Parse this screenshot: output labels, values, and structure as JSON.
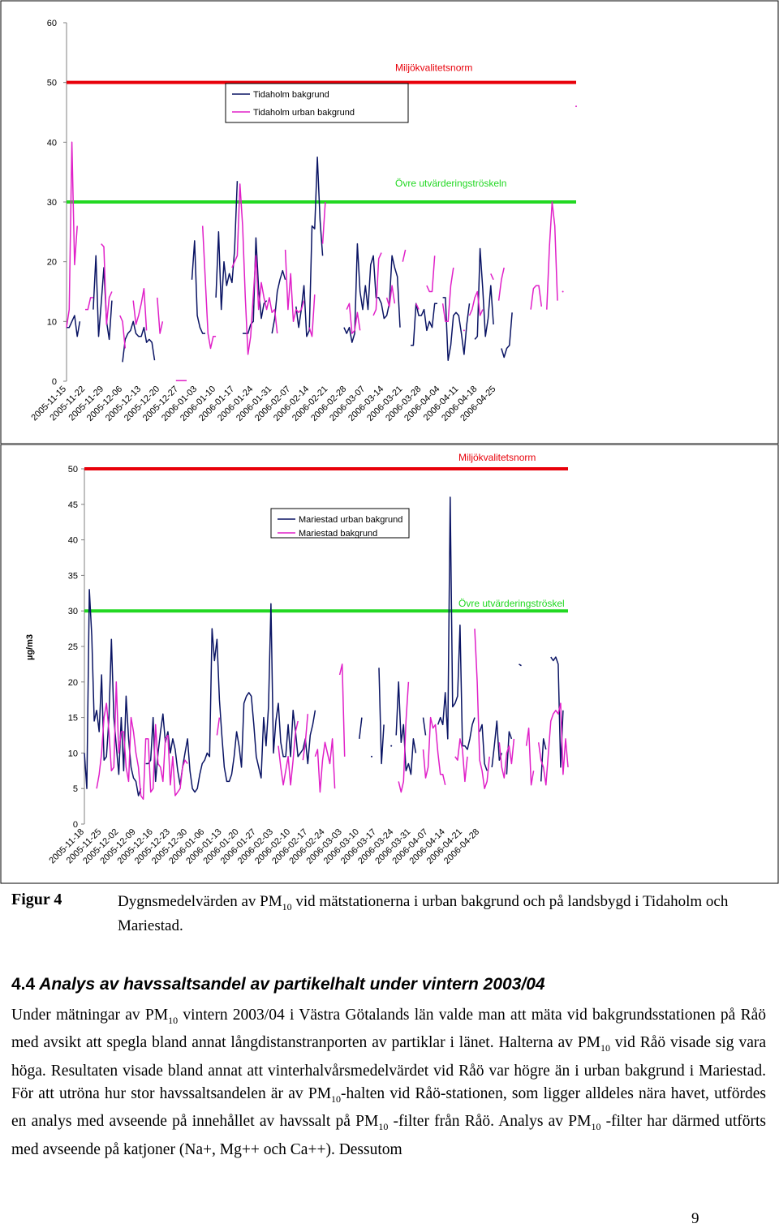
{
  "chart_data": [
    {
      "type": "line",
      "ylabel": "",
      "ylim": [
        0,
        60
      ],
      "yticks": [
        0,
        10,
        20,
        30,
        40,
        50,
        60
      ],
      "x_tick_labels": [
        "2005-11-15",
        "2005-11-22",
        "2005-11-29",
        "2005-12-06",
        "2005-12-13",
        "2005-12-20",
        "2005-12-27",
        "2006-01-03",
        "2006-01-10",
        "2006-01-17",
        "2006-01-24",
        "2006-01-31",
        "2006-02-07",
        "2006-02-14",
        "2006-02-21",
        "2006-02-28",
        "2006-03-07",
        "2006-03-14",
        "2006-03-21",
        "2006-03-28",
        "2006-04-04",
        "2006-04-11",
        "2006-04-18",
        "2006-04-25"
      ],
      "x_start": "2005-11-15",
      "thresholds": [
        {
          "label": "Miljökvalitetsnorm",
          "value": 50,
          "color": "#e8000a"
        },
        {
          "label": "Övre utvärderingströskeln",
          "value": 30,
          "color": "#22d822"
        }
      ],
      "series": [
        {
          "name": "Tidaholm bakgrund",
          "color": "#0a1464",
          "values": [
            9,
            9,
            10,
            11,
            7.5,
            10,
            null,
            null,
            null,
            null,
            12,
            21,
            7.5,
            13,
            19,
            10,
            7,
            13.5,
            null,
            null,
            null,
            3.2,
            7,
            8,
            8.5,
            10,
            8,
            7.5,
            7.5,
            9,
            6.5,
            7,
            6.5,
            3.5,
            null,
            null,
            null,
            null,
            null,
            null,
            null,
            null,
            null,
            null,
            null,
            null,
            null,
            17,
            23.5,
            11,
            9,
            8,
            8,
            null,
            null,
            null,
            14,
            25,
            12,
            20,
            16,
            18,
            16.5,
            22,
            33.5,
            null,
            8,
            8,
            8,
            9.5,
            10,
            24,
            15.5,
            10.5,
            13,
            13.5,
            null,
            8,
            10.5,
            15,
            17,
            18.5,
            17,
            null,
            null,
            null,
            12.5,
            9,
            12,
            16,
            7.5,
            8.5,
            26,
            25.5,
            37.5,
            27,
            21,
            null,
            null,
            null,
            null,
            null,
            null,
            null,
            9,
            8,
            9,
            6.5,
            8,
            23,
            15,
            12,
            16,
            12,
            19.5,
            21,
            14,
            14,
            13,
            10.5,
            11,
            13,
            21,
            19,
            17.5,
            9,
            null,
            null,
            null,
            6,
            6,
            13,
            11,
            11,
            12,
            8.5,
            10,
            9,
            13,
            13,
            null,
            14,
            14,
            3.5,
            6,
            11,
            11.5,
            11,
            8,
            4.5,
            9.5,
            13,
            null,
            7,
            7.5,
            22.2,
            15.5,
            7.5,
            10.5,
            16,
            9.5,
            null,
            null,
            5.5,
            4,
            5.5,
            6,
            11.5
          ]
        },
        {
          "name": "Tidaholm urban bakgrund",
          "color": "#e020c8",
          "values": [
            9,
            12,
            40,
            19.5,
            26,
            null,
            null,
            12,
            12,
            14,
            14,
            null,
            null,
            23,
            22.5,
            9.5,
            14,
            15,
            null,
            null,
            11,
            10,
            5.5,
            null,
            null,
            13.5,
            9.5,
            11,
            13,
            15.5,
            8.5,
            null,
            null,
            null,
            14,
            8,
            10,
            null,
            null,
            null,
            null,
            0.1,
            0.1,
            0.1,
            0.1,
            0.1,
            null,
            null,
            null,
            null,
            null,
            26,
            17,
            8,
            5.5,
            7.5,
            7.5,
            null,
            null,
            null,
            null,
            null,
            19,
            20,
            21,
            33,
            26,
            14,
            4.5,
            7.5,
            14.5,
            21,
            12,
            16.5,
            14,
            12,
            14,
            11.5,
            12,
            8,
            null,
            null,
            22,
            12,
            18,
            10,
            12,
            11.5,
            12,
            13.5,
            null,
            9,
            7.5,
            14.5,
            null,
            null,
            23,
            30,
            null,
            null,
            null,
            null,
            null,
            null,
            null,
            12,
            13,
            8,
            8.5,
            11.5,
            8.5,
            null,
            null,
            null,
            null,
            11,
            12,
            20.5,
            21.5,
            null,
            14,
            12.5,
            16,
            13,
            null,
            null,
            20,
            22,
            null,
            null,
            null,
            13,
            12,
            null,
            null,
            16,
            15,
            15,
            21,
            null,
            null,
            13,
            10,
            10,
            16,
            19,
            null,
            null,
            null,
            8.5,
            null,
            11,
            12,
            14,
            15,
            11,
            12,
            null,
            null,
            18,
            17,
            null,
            13.5,
            17,
            19,
            null,
            null,
            null,
            null,
            null,
            null,
            null,
            null,
            null,
            12,
            15.5,
            16,
            16,
            12.5,
            null,
            12,
            22.5,
            30,
            26,
            13.5,
            null,
            15,
            null,
            null,
            null,
            null,
            46
          ]
        }
      ]
    },
    {
      "type": "line",
      "ylabel": "µg/m3",
      "ylim": [
        0,
        50
      ],
      "yticks": [
        0,
        5,
        10,
        15,
        20,
        25,
        30,
        35,
        40,
        45,
        50
      ],
      "x_tick_labels": [
        "2005-11-18",
        "2005-11-25",
        "2005-12-02",
        "2005-12-09",
        "2005-12-16",
        "2005-12-23",
        "2005-12-30",
        "2006-01-06",
        "2006-01-13",
        "2006-01-20",
        "2006-01-27",
        "2006-02-03",
        "2006-02-10",
        "2006-02-17",
        "2006-02-24",
        "2006-03-03",
        "2006-03-10",
        "2006-03-17",
        "2006-03-24",
        "2006-03-31",
        "2006-04-07",
        "2006-04-14",
        "2006-04-21",
        "2006-04-28"
      ],
      "x_start": "2005-11-18",
      "thresholds": [
        {
          "label": "Miljökvalitetsnorm",
          "value": 50,
          "color": "#e8000a"
        },
        {
          "label": "Övre utvärderingströskel",
          "value": 30,
          "color": "#22d822"
        }
      ],
      "series": [
        {
          "name": "Mariestad urban bakgrund",
          "color": "#0a1464",
          "values": [
            10,
            5,
            33,
            26.5,
            14.5,
            16,
            13,
            21,
            9,
            9.5,
            15,
            26,
            15,
            11,
            7,
            15,
            7.5,
            18,
            12,
            8,
            6.5,
            6,
            4,
            5,
            null,
            8.5,
            8.5,
            9,
            15,
            6,
            10,
            13,
            15.5,
            11.5,
            13,
            10,
            12,
            10.5,
            7.5,
            5.5,
            8,
            10,
            12,
            7.5,
            5,
            4.5,
            5,
            7,
            8.5,
            9,
            10,
            9.5,
            27.5,
            23,
            26,
            17.5,
            12.5,
            8,
            6,
            6,
            7,
            9.5,
            13,
            11,
            8,
            17,
            18,
            18.5,
            18,
            14,
            9.5,
            8,
            6.5,
            15,
            11,
            16.5,
            31,
            10,
            14.5,
            17,
            11.5,
            9.5,
            9.5,
            14,
            9.5,
            16,
            13,
            9.5,
            10,
            10.5,
            12,
            8.5,
            12.5,
            14,
            16,
            null,
            null,
            null,
            null,
            null,
            null,
            null,
            null,
            null,
            null,
            null,
            null,
            null,
            null,
            null,
            null,
            null,
            12,
            15,
            null,
            null,
            null,
            9.5,
            null,
            null,
            22,
            8.5,
            14,
            null,
            null,
            11,
            null,
            12.5,
            20,
            11.5,
            14,
            7.5,
            8.5,
            7,
            12,
            10,
            null,
            null,
            15,
            12.5,
            null,
            null,
            null,
            null,
            14,
            15,
            14,
            18.5,
            12,
            46,
            16.5,
            17,
            18,
            28,
            11,
            11,
            10.5,
            12,
            14,
            15,
            null,
            13,
            14,
            8.5,
            7.5,
            null,
            8,
            11,
            14.5,
            9,
            10,
            null,
            7,
            13,
            12,
            null,
            null,
            22.5,
            22.3,
            null,
            null,
            null,
            null,
            null,
            null,
            null,
            6,
            12,
            10.5,
            null,
            23.5,
            23,
            23.5,
            22.5,
            8,
            16
          ]
        },
        {
          "name": "Mariestad bakgrund",
          "color": "#e020c8",
          "values": [
            null,
            null,
            null,
            null,
            null,
            5,
            7,
            10,
            15,
            17,
            13,
            7.5,
            8,
            20,
            10,
            13,
            13,
            8,
            6,
            15,
            13,
            10,
            8,
            4,
            3.5,
            12,
            12,
            4.5,
            5,
            14,
            8.5,
            8,
            6,
            12,
            12.5,
            5.5,
            9.5,
            4,
            4.5,
            5,
            8,
            9,
            8.5,
            null,
            null,
            null,
            null,
            null,
            null,
            null,
            null,
            null,
            null,
            null,
            12.5,
            15,
            null,
            null,
            null,
            null,
            null,
            null,
            null,
            null,
            null,
            null,
            null,
            null,
            null,
            null,
            null,
            null,
            null,
            null,
            null,
            null,
            null,
            null,
            null,
            11,
            8,
            5.5,
            7.5,
            9.5,
            5.5,
            9,
            13,
            14.5,
            null,
            9,
            11.5,
            15.5,
            null,
            null,
            9.5,
            10.5,
            4.5,
            9,
            11.5,
            10,
            8.5,
            12,
            5,
            null,
            21,
            22.5,
            9.5,
            null,
            null,
            null,
            null,
            null,
            null,
            null,
            null,
            null,
            null,
            null,
            null,
            null,
            null,
            null,
            null,
            null,
            null,
            null,
            null,
            null,
            6,
            4.5,
            6,
            14.5,
            20,
            null,
            null,
            null,
            null,
            null,
            10.5,
            6.5,
            8,
            15,
            13.5,
            14,
            10,
            7,
            7,
            5.5,
            null,
            null,
            null,
            9.5,
            9,
            12,
            10.5,
            6,
            9.5,
            null,
            null,
            27.5,
            20,
            9,
            7.5,
            5,
            6,
            9.5,
            null,
            null,
            null,
            11.5,
            8,
            6.5,
            10,
            11,
            8.5,
            12,
            null,
            null,
            null,
            null,
            11,
            13.5,
            5.5,
            7.5,
            null,
            11.5,
            9,
            8,
            5.5,
            10,
            14.5,
            15.5,
            16,
            15.5,
            17,
            7,
            12,
            8
          ]
        }
      ]
    }
  ],
  "figure": {
    "label": "Figur 4",
    "caption_before": "Dygnsmedelvärden av PM",
    "caption_sub": "10",
    "caption_after": " vid mätstationerna i  urban bakgrund och på landsbygd i Tidaholm och Mariestad."
  },
  "section": {
    "number": "4.4",
    "title": "Analys av havssaltsandel av partikelhalt under vintern 2003/04",
    "paragraph": [
      {
        "t": "Under mätningar av PM"
      },
      {
        "t": "10",
        "sub": true
      },
      {
        "t": " vintern 2003/04 i Västra Götalands län valde man att mäta vid bakgrundsstationen på Råö med avsikt att spegla bland annat långdistanstranporten av partiklar i länet. Halterna av PM"
      },
      {
        "t": "10",
        "sub": true
      },
      {
        "t": " vid Råö visade sig vara höga. Resultaten visade bland annat att vinterhalvårsmedelvärdet vid Råö var  högre än i urban bakgrund i Mariestad. För att utröna hur stor havssaltsandelen är av PM"
      },
      {
        "t": "10",
        "sub": true
      },
      {
        "t": "-halten  vid Råö-stationen, som ligger alldeles nära havet, utfördes en  analys med avseende på innehållet av havssalt på PM"
      },
      {
        "t": "10",
        "sub": true
      },
      {
        "t": " -filter från Råö. Analys av PM"
      },
      {
        "t": "10",
        "sub": true
      },
      {
        "t": " -filter har därmed utförts med avseende på katjoner (Na+, Mg++ och Ca++). Dessutom"
      }
    ]
  },
  "page_number": "9"
}
